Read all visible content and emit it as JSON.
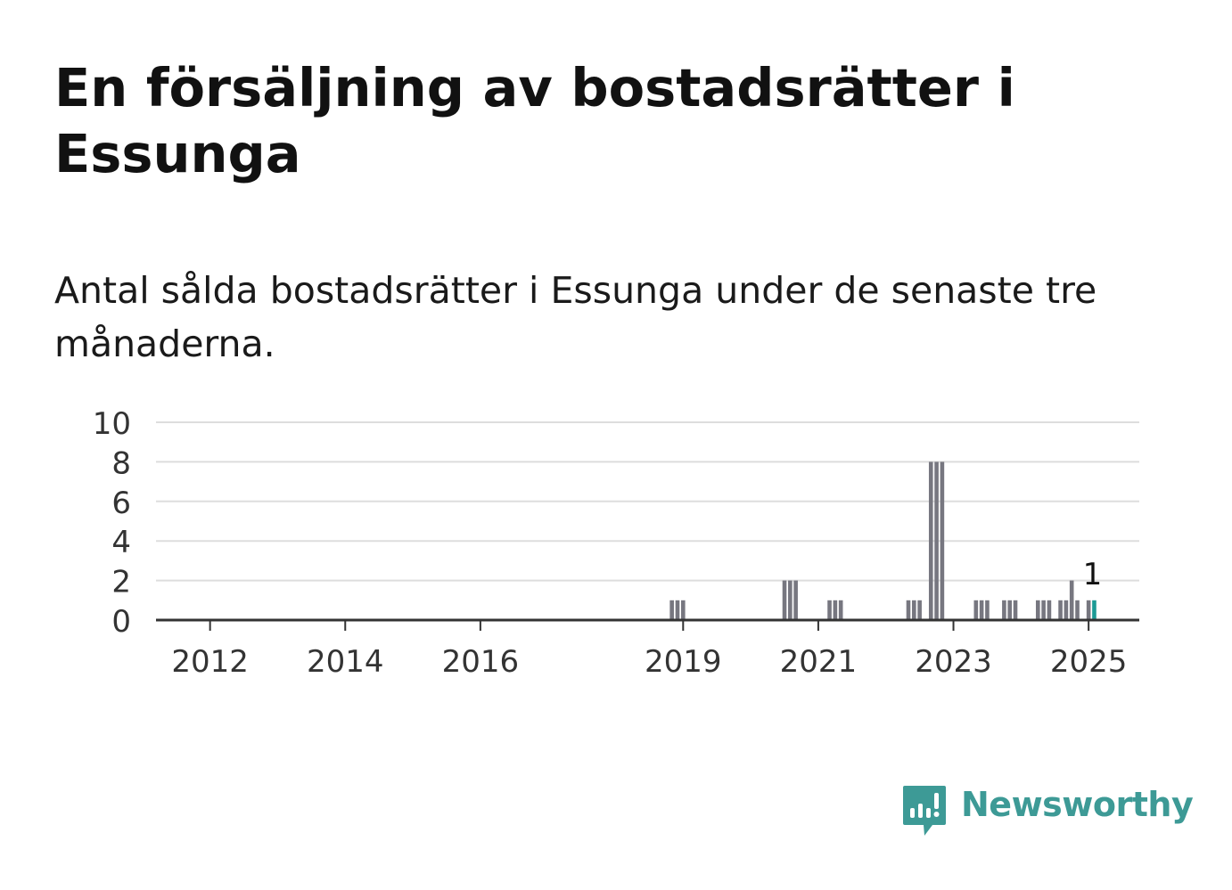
{
  "title": "En försäljning av bostadsrätter i Essunga",
  "subtitle": "Antal sålda bostadsrätter i Essunga under de senaste tre månaderna.",
  "brand": {
    "name": "Newsworthy",
    "color": "#3d9a96"
  },
  "colors": {
    "bar": "#777780",
    "highlight": "#1c9a95",
    "grid": "#dddddd",
    "axis": "#333333",
    "text": "#333333"
  },
  "chart_data": {
    "type": "bar",
    "ylim": [
      0,
      10
    ],
    "yticks": [
      "0",
      "2",
      "4",
      "6",
      "8",
      "10"
    ],
    "xticks": [
      "2012",
      "2014",
      "2016",
      "2019",
      "2021",
      "2023",
      "2025"
    ],
    "grid": true,
    "highlight_label": "1",
    "bars": [
      {
        "date": "2018-11",
        "value": 1
      },
      {
        "date": "2018-12",
        "value": 1
      },
      {
        "date": "2019-01",
        "value": 1
      },
      {
        "date": "2020-07",
        "value": 2
      },
      {
        "date": "2020-08",
        "value": 2
      },
      {
        "date": "2020-09",
        "value": 2
      },
      {
        "date": "2021-03",
        "value": 1
      },
      {
        "date": "2021-04",
        "value": 1
      },
      {
        "date": "2021-05",
        "value": 1
      },
      {
        "date": "2022-05",
        "value": 1
      },
      {
        "date": "2022-06",
        "value": 1
      },
      {
        "date": "2022-07",
        "value": 1
      },
      {
        "date": "2022-09",
        "value": 8
      },
      {
        "date": "2022-10",
        "value": 8
      },
      {
        "date": "2022-11",
        "value": 8
      },
      {
        "date": "2023-05",
        "value": 1
      },
      {
        "date": "2023-06",
        "value": 1
      },
      {
        "date": "2023-07",
        "value": 1
      },
      {
        "date": "2023-10",
        "value": 1
      },
      {
        "date": "2023-11",
        "value": 1
      },
      {
        "date": "2023-12",
        "value": 1
      },
      {
        "date": "2024-04",
        "value": 1
      },
      {
        "date": "2024-05",
        "value": 1
      },
      {
        "date": "2024-06",
        "value": 1
      },
      {
        "date": "2024-08",
        "value": 1
      },
      {
        "date": "2024-09",
        "value": 1
      },
      {
        "date": "2024-10",
        "value": 2
      },
      {
        "date": "2024-11",
        "value": 1
      },
      {
        "date": "2025-01",
        "value": 1
      },
      {
        "date": "2025-02",
        "value": 1,
        "highlight": true
      }
    ]
  }
}
